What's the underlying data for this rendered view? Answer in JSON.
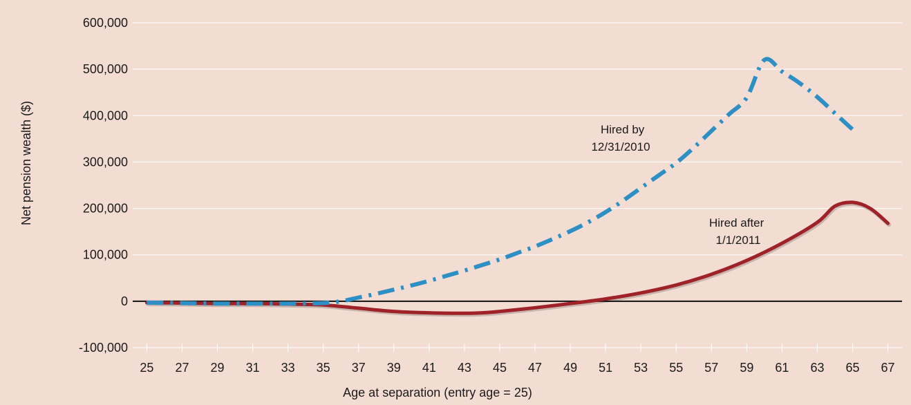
{
  "chart_data": {
    "type": "line",
    "xlabel": "Age at separation (entry age = 25)",
    "ylabel": "Net pension wealth ($)",
    "xlim": [
      24.2,
      67.8
    ],
    "ylim": [
      -100000,
      600000
    ],
    "x_ticks": [
      "25",
      "27",
      "29",
      "31",
      "33",
      "35",
      "37",
      "39",
      "41",
      "43",
      "45",
      "47",
      "49",
      "51",
      "53",
      "55",
      "57",
      "59",
      "61",
      "63",
      "65",
      "67"
    ],
    "y_ticks": [
      "600,000",
      "500,000",
      "400,000",
      "300,000",
      "200,000",
      "100,000",
      "0",
      "-100,000"
    ],
    "grid": true,
    "series": [
      {
        "name": "Hired by 12/31/2010",
        "color": "#2e8fc4",
        "style": "dash-dot",
        "x": [
          25,
          27,
          29,
          31,
          33,
          35,
          36,
          37,
          38,
          39,
          40,
          41,
          42,
          43,
          44,
          45,
          46,
          47,
          48,
          49,
          50,
          51,
          52,
          53,
          54,
          55,
          56,
          57,
          58,
          59,
          60,
          61,
          62,
          63,
          64,
          65
        ],
        "y": [
          -3000,
          -4000,
          -5000,
          -5000,
          -5000,
          -4000,
          0,
          8000,
          16000,
          25000,
          34000,
          44000,
          55000,
          66000,
          78000,
          90000,
          104000,
          118000,
          134000,
          151000,
          170000,
          192000,
          217000,
          244000,
          271000,
          298000,
          331000,
          367000,
          403000,
          439000,
          520000,
          495000,
          470000,
          440000,
          405000,
          370000
        ]
      },
      {
        "name": "Hired after 1/1/2011",
        "color": "#9e2227",
        "style": "solid",
        "x": [
          25,
          27,
          29,
          31,
          33,
          35,
          37,
          39,
          41,
          43,
          44,
          45,
          47,
          49,
          51,
          53,
          55,
          57,
          59,
          61,
          63,
          64,
          65,
          66,
          67
        ],
        "y": [
          -3000,
          -4000,
          -5000,
          -5000,
          -6000,
          -8000,
          -15000,
          -22000,
          -25000,
          -26000,
          -25000,
          -22000,
          -14000,
          -5000,
          5000,
          18000,
          35000,
          58000,
          88000,
          125000,
          170000,
          205000,
          213000,
          200000,
          168000
        ]
      }
    ],
    "annotations": [
      {
        "series": 0,
        "lines": [
          "Hired by",
          "12/31/2010"
        ]
      },
      {
        "series": 1,
        "lines": [
          "Hired after",
          "1/1/2011"
        ]
      }
    ]
  }
}
